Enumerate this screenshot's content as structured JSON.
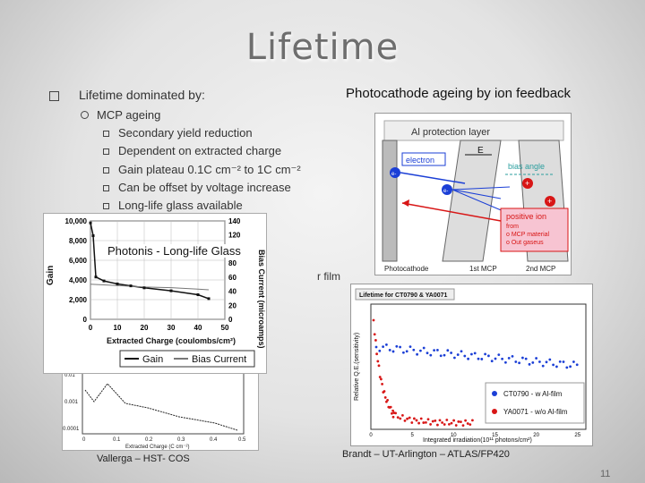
{
  "title": "Lifetime",
  "bullet_main": "Lifetime dominated by:",
  "sub_item": "MCP ageing",
  "subsub_items": [
    "Secondary yield reduction",
    "Dependent on extracted charge",
    "Gain plateau 0.1C cm⁻² to 1C cm⁻²",
    "Can be offset by voltage increase",
    "Long-life glass available"
  ],
  "right_heading": "Photocathode ageing by ion feedback",
  "diagram": {
    "al_layer": "Al protection layer",
    "electron": "electron",
    "e_field": "E",
    "bias_angle": "bias angle",
    "positive_ion": "positive ion",
    "ion_source": [
      "from",
      "o MCP material",
      "o Out gaseus"
    ],
    "photocathode": "Photocathode",
    "mcp1": "1st MCP",
    "mcp2": "2nd MCP",
    "e_minus": "e-",
    "plus": "+"
  },
  "film_fragment": "r film",
  "photonis_label": "Photonis - Long-life Glass",
  "photonis_chart": {
    "xlabel": "Extracted Charge (coulombs/cm²)",
    "ylabel": "Gain",
    "y2label": "Bias Current (microamps)",
    "xticks": [
      "0",
      "10",
      "20",
      "30",
      "40",
      "50"
    ],
    "yticks": [
      "0",
      "2,000",
      "4,000",
      "6,000",
      "8,000",
      "10,000"
    ],
    "y2ticks": [
      "0",
      "20",
      "40",
      "60",
      "80",
      "100",
      "120",
      "140"
    ],
    "legend": [
      "Gain",
      "Bias Current"
    ]
  },
  "lifetime_chart": {
    "title": "Lifetime for CT0790 & YA0071",
    "ylabel": "Relative Q.E.(sensitivity)",
    "xlabel": "Integrated irradiation(10¹¹ photons/cm²)",
    "legend": [
      "CT0790 - w Al-film",
      "YA0071 - w/o Al-film"
    ],
    "xticks": [
      "0",
      "5",
      "10",
      "15",
      "20",
      "25"
    ]
  },
  "hst_chart": {
    "xlabel": "Extracted Charge (C cm⁻²)",
    "xticks": [
      "0",
      "0.1",
      "0.2",
      "0.3",
      "0.4",
      "0.5"
    ],
    "yticks": [
      "0.01",
      "0.001",
      "0.0001"
    ]
  },
  "caption_left": "Vallerga – HST- COS",
  "caption_right": "Brandt – UT-Arlington – ATLAS/FP420",
  "page_number": "11",
  "colors": {
    "blue": "#1b3fd6",
    "red": "#d81616",
    "pink": "#f7c4d2",
    "gray_title": "#6e6e6e"
  },
  "chart_data": [
    {
      "type": "line",
      "title": "",
      "xlabel": "Extracted Charge (coulombs/cm²)",
      "ylabel": "Gain",
      "series": [
        {
          "name": "Gain",
          "x": [
            0,
            1,
            2,
            5,
            10,
            15,
            20,
            30,
            40,
            44
          ],
          "values": [
            9800,
            8500,
            4300,
            3900,
            3600,
            3400,
            3200,
            2900,
            2500,
            2100
          ]
        },
        {
          "name": "Bias Current",
          "x": [
            0,
            5,
            10,
            20,
            30,
            40,
            44
          ],
          "values": [
            50,
            49,
            48,
            46,
            45,
            43,
            42
          ]
        }
      ],
      "xlim": [
        0,
        50
      ],
      "ylim": [
        0,
        10000
      ]
    },
    {
      "type": "scatter",
      "title": "Lifetime for CT0790 & YA0071",
      "xlabel": "Integrated irradiation(10¹¹ photons/cm²)",
      "ylabel": "Relative Q.E.(sensitivity)",
      "series": [
        {
          "name": "CT0790 - w Al-film"
        },
        {
          "name": "YA0071 - w/o Al-film"
        }
      ],
      "xlim": [
        0,
        25
      ]
    }
  ]
}
